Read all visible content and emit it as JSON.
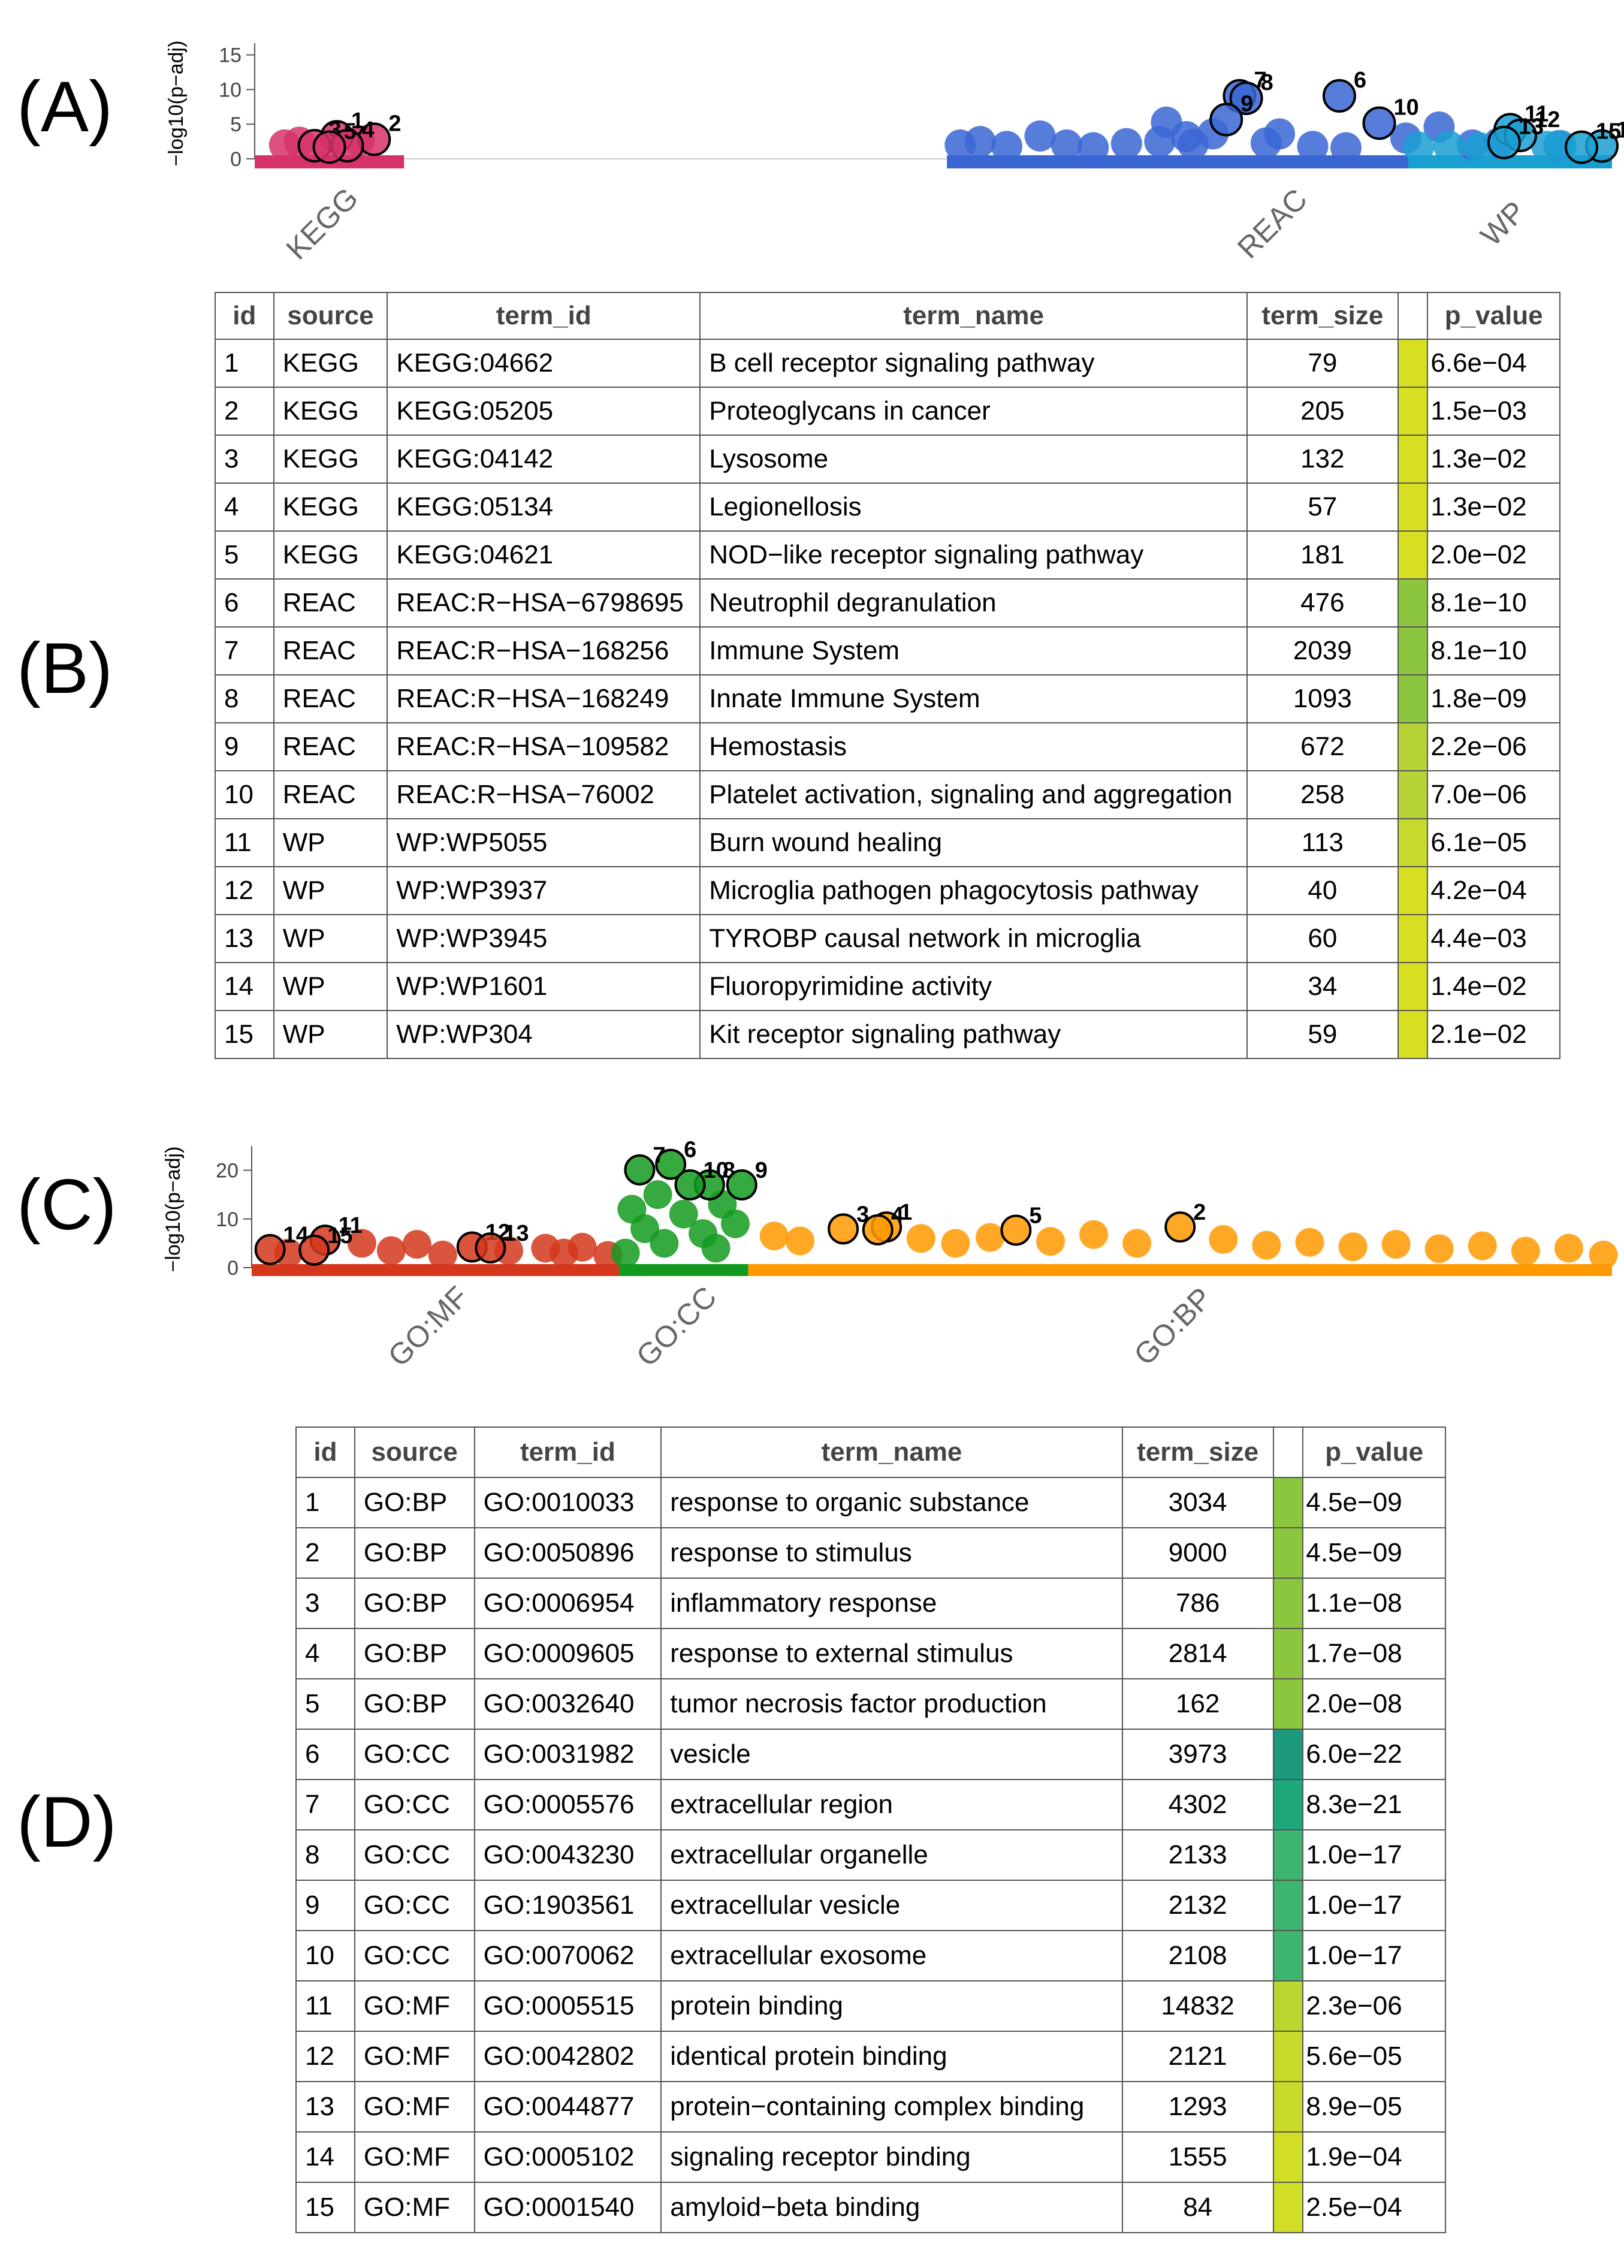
{
  "panels": {
    "a": "(A)",
    "b": "(B)",
    "c": "(C)",
    "d": "(D)"
  },
  "table_headers": [
    "id",
    "source",
    "term_id",
    "term_name",
    "term_size",
    "",
    "p_value"
  ],
  "chart_data": [
    {
      "type": "scatter",
      "ylabel": "−log10(p−adj)",
      "ylim": [
        0,
        16
      ],
      "yticks": [
        0,
        5,
        10,
        15
      ],
      "grid": false,
      "legend": "none",
      "sources": [
        {
          "name": "KEGG",
          "color": "#d6336c",
          "width": 0.11
        },
        {
          "name": "REAC",
          "color": "#3a66d4",
          "width": 0.49
        },
        {
          "name": "WP",
          "color": "#1a9fd1",
          "width": 0.15
        }
      ],
      "highlighted": [
        {
          "id": 1,
          "source": "KEGG",
          "pos": 0.55,
          "y": 3.18
        },
        {
          "id": 2,
          "source": "KEGG",
          "pos": 0.8,
          "y": 2.82
        },
        {
          "id": 3,
          "source": "KEGG",
          "pos": 0.4,
          "y": 1.89
        },
        {
          "id": 4,
          "source": "KEGG",
          "pos": 0.62,
          "y": 1.89
        },
        {
          "id": 5,
          "source": "KEGG",
          "pos": 0.5,
          "y": 1.7
        },
        {
          "id": 6,
          "source": "REAC",
          "pos": 0.59,
          "y": 9.09
        },
        {
          "id": 7,
          "source": "REAC",
          "pos": 0.44,
          "y": 9.09
        },
        {
          "id": 8,
          "source": "REAC",
          "pos": 0.45,
          "y": 8.74
        },
        {
          "id": 9,
          "source": "REAC",
          "pos": 0.42,
          "y": 5.66
        },
        {
          "id": 10,
          "source": "REAC",
          "pos": 0.65,
          "y": 5.15
        },
        {
          "id": 11,
          "source": "WP",
          "pos": 0.5,
          "y": 4.21
        },
        {
          "id": 12,
          "source": "WP",
          "pos": 0.55,
          "y": 3.38
        },
        {
          "id": 13,
          "source": "WP",
          "pos": 0.47,
          "y": 2.36
        },
        {
          "id": 14,
          "source": "WP",
          "pos": 0.95,
          "y": 1.85
        },
        {
          "id": 15,
          "source": "WP",
          "pos": 0.85,
          "y": 1.68
        }
      ],
      "background": [
        {
          "source": "KEGG",
          "pos": 0.2,
          "y": 2.0
        },
        {
          "source": "KEGG",
          "pos": 0.3,
          "y": 2.4
        },
        {
          "source": "KEGG",
          "pos": 0.7,
          "y": 2.6
        },
        {
          "source": "REAC",
          "pos": 0.02,
          "y": 2.0
        },
        {
          "source": "REAC",
          "pos": 0.05,
          "y": 2.5
        },
        {
          "source": "REAC",
          "pos": 0.09,
          "y": 1.8
        },
        {
          "source": "REAC",
          "pos": 0.14,
          "y": 3.3
        },
        {
          "source": "REAC",
          "pos": 0.18,
          "y": 2.0
        },
        {
          "source": "REAC",
          "pos": 0.22,
          "y": 1.6
        },
        {
          "source": "REAC",
          "pos": 0.27,
          "y": 2.2
        },
        {
          "source": "REAC",
          "pos": 0.32,
          "y": 2.5
        },
        {
          "source": "REAC",
          "pos": 0.33,
          "y": 5.3
        },
        {
          "source": "REAC",
          "pos": 0.36,
          "y": 3.2
        },
        {
          "source": "REAC",
          "pos": 0.37,
          "y": 2.1
        },
        {
          "source": "REAC",
          "pos": 0.4,
          "y": 3.6
        },
        {
          "source": "REAC",
          "pos": 0.48,
          "y": 2.3
        },
        {
          "source": "REAC",
          "pos": 0.5,
          "y": 3.6
        },
        {
          "source": "REAC",
          "pos": 0.55,
          "y": 1.8
        },
        {
          "source": "REAC",
          "pos": 0.6,
          "y": 1.6
        },
        {
          "source": "REAC",
          "pos": 0.69,
          "y": 3.0
        },
        {
          "source": "REAC",
          "pos": 0.74,
          "y": 4.6
        },
        {
          "source": "REAC",
          "pos": 0.79,
          "y": 2.0
        },
        {
          "source": "REAC",
          "pos": 0.83,
          "y": 2.3
        },
        {
          "source": "REAC",
          "pos": 0.92,
          "y": 1.9
        },
        {
          "source": "WP",
          "pos": 0.05,
          "y": 1.7
        },
        {
          "source": "WP",
          "pos": 0.2,
          "y": 1.8
        },
        {
          "source": "WP",
          "pos": 0.35,
          "y": 1.6
        },
        {
          "source": "WP",
          "pos": 0.68,
          "y": 1.8
        },
        {
          "source": "WP",
          "pos": 0.75,
          "y": 1.9
        }
      ]
    },
    {
      "type": "scatter",
      "ylabel": "−log10(p−adj)",
      "ylim": [
        0,
        24
      ],
      "yticks": [
        0,
        10,
        20
      ],
      "grid": false,
      "legend": "none",
      "sources": [
        {
          "name": "GO:MF",
          "color": "#d4371c",
          "width": 0.27
        },
        {
          "name": "GO:CC",
          "color": "#139a1e",
          "width": 0.095
        },
        {
          "name": "GO:BP",
          "color": "#ff9900",
          "width": 0.635
        }
      ],
      "highlighted": [
        {
          "id": 1,
          "source": "GO:BP",
          "pos": 0.16,
          "y": 8.35
        },
        {
          "id": 2,
          "source": "GO:BP",
          "pos": 0.5,
          "y": 8.35
        },
        {
          "id": 3,
          "source": "GO:BP",
          "pos": 0.11,
          "y": 7.96
        },
        {
          "id": 4,
          "source": "GO:BP",
          "pos": 0.15,
          "y": 7.77
        },
        {
          "id": 5,
          "source": "GO:BP",
          "pos": 0.31,
          "y": 7.7
        },
        {
          "id": 6,
          "source": "GO:CC",
          "pos": 0.4,
          "y": 21.22
        },
        {
          "id": 7,
          "source": "GO:CC",
          "pos": 0.16,
          "y": 20.08
        },
        {
          "id": 8,
          "source": "GO:CC",
          "pos": 0.7,
          "y": 17.0
        },
        {
          "id": 9,
          "source": "GO:CC",
          "pos": 0.95,
          "y": 17.0
        },
        {
          "id": 10,
          "source": "GO:CC",
          "pos": 0.55,
          "y": 17.0
        },
        {
          "id": 11,
          "source": "GO:MF",
          "pos": 0.2,
          "y": 5.64
        },
        {
          "id": 12,
          "source": "GO:MF",
          "pos": 0.6,
          "y": 4.25
        },
        {
          "id": 13,
          "source": "GO:MF",
          "pos": 0.65,
          "y": 4.05
        },
        {
          "id": 14,
          "source": "GO:MF",
          "pos": 0.05,
          "y": 3.72
        },
        {
          "id": 15,
          "source": "GO:MF",
          "pos": 0.17,
          "y": 3.6
        }
      ],
      "background": [
        {
          "source": "GO:MF",
          "pos": 0.1,
          "y": 3.0
        },
        {
          "source": "GO:MF",
          "pos": 0.3,
          "y": 5.0
        },
        {
          "source": "GO:MF",
          "pos": 0.38,
          "y": 3.5
        },
        {
          "source": "GO:MF",
          "pos": 0.45,
          "y": 4.8
        },
        {
          "source": "GO:MF",
          "pos": 0.52,
          "y": 2.6
        },
        {
          "source": "GO:MF",
          "pos": 0.7,
          "y": 3.5
        },
        {
          "source": "GO:MF",
          "pos": 0.8,
          "y": 4.0
        },
        {
          "source": "GO:MF",
          "pos": 0.85,
          "y": 3.0
        },
        {
          "source": "GO:MF",
          "pos": 0.9,
          "y": 4.2
        },
        {
          "source": "GO:MF",
          "pos": 0.97,
          "y": 2.5
        },
        {
          "source": "GO:CC",
          "pos": 0.1,
          "y": 12.0
        },
        {
          "source": "GO:CC",
          "pos": 0.3,
          "y": 15.0
        },
        {
          "source": "GO:CC",
          "pos": 0.5,
          "y": 11.0
        },
        {
          "source": "GO:CC",
          "pos": 0.8,
          "y": 13.0
        },
        {
          "source": "GO:CC",
          "pos": 0.2,
          "y": 8.0
        },
        {
          "source": "GO:CC",
          "pos": 0.65,
          "y": 7.0
        },
        {
          "source": "GO:CC",
          "pos": 0.9,
          "y": 9.0
        },
        {
          "source": "GO:CC",
          "pos": 0.35,
          "y": 5.0
        },
        {
          "source": "GO:CC",
          "pos": 0.75,
          "y": 4.0
        },
        {
          "source": "GO:CC",
          "pos": 0.05,
          "y": 3.0
        },
        {
          "source": "GO:BP",
          "pos": 0.03,
          "y": 6.5
        },
        {
          "source": "GO:BP",
          "pos": 0.06,
          "y": 5.5
        },
        {
          "source": "GO:BP",
          "pos": 0.2,
          "y": 6.0
        },
        {
          "source": "GO:BP",
          "pos": 0.24,
          "y": 5.0
        },
        {
          "source": "GO:BP",
          "pos": 0.28,
          "y": 6.2
        },
        {
          "source": "GO:BP",
          "pos": 0.35,
          "y": 5.4
        },
        {
          "source": "GO:BP",
          "pos": 0.4,
          "y": 6.8
        },
        {
          "source": "GO:BP",
          "pos": 0.45,
          "y": 5.0
        },
        {
          "source": "GO:BP",
          "pos": 0.55,
          "y": 5.8
        },
        {
          "source": "GO:BP",
          "pos": 0.6,
          "y": 4.6
        },
        {
          "source": "GO:BP",
          "pos": 0.65,
          "y": 5.2
        },
        {
          "source": "GO:BP",
          "pos": 0.7,
          "y": 4.3
        },
        {
          "source": "GO:BP",
          "pos": 0.75,
          "y": 4.8
        },
        {
          "source": "GO:BP",
          "pos": 0.8,
          "y": 3.9
        },
        {
          "source": "GO:BP",
          "pos": 0.85,
          "y": 4.5
        },
        {
          "source": "GO:BP",
          "pos": 0.9,
          "y": 3.4
        },
        {
          "source": "GO:BP",
          "pos": 0.95,
          "y": 4.0
        },
        {
          "source": "GO:BP",
          "pos": 0.99,
          "y": 2.6
        }
      ]
    }
  ],
  "table_b": {
    "rows": [
      {
        "id": "1",
        "source": "KEGG",
        "term_id": "KEGG:04662",
        "term_name": "B cell receptor signaling pathway",
        "term_size": "79",
        "color": "#d7df23",
        "p_value": "6.6e−04"
      },
      {
        "id": "2",
        "source": "KEGG",
        "term_id": "KEGG:05205",
        "term_name": "Proteoglycans in cancer",
        "term_size": "205",
        "color": "#d7df23",
        "p_value": "1.5e−03"
      },
      {
        "id": "3",
        "source": "KEGG",
        "term_id": "KEGG:04142",
        "term_name": "Lysosome",
        "term_size": "132",
        "color": "#d7df23",
        "p_value": "1.3e−02"
      },
      {
        "id": "4",
        "source": "KEGG",
        "term_id": "KEGG:05134",
        "term_name": "Legionellosis",
        "term_size": "57",
        "color": "#d7df23",
        "p_value": "1.3e−02"
      },
      {
        "id": "5",
        "source": "KEGG",
        "term_id": "KEGG:04621",
        "term_name": "NOD−like receptor signaling pathway",
        "term_size": "181",
        "color": "#d7df23",
        "p_value": "2.0e−02"
      },
      {
        "id": "6",
        "source": "REAC",
        "term_id": "REAC:R−HSA−6798695",
        "term_name": "Neutrophil degranulation",
        "term_size": "476",
        "color": "#8cc63f",
        "p_value": "8.1e−10"
      },
      {
        "id": "7",
        "source": "REAC",
        "term_id": "REAC:R−HSA−168256",
        "term_name": "Immune System",
        "term_size": "2039",
        "color": "#8cc63f",
        "p_value": "8.1e−10"
      },
      {
        "id": "8",
        "source": "REAC",
        "term_id": "REAC:R−HSA−168249",
        "term_name": "Innate Immune System",
        "term_size": "1093",
        "color": "#8cc63f",
        "p_value": "1.8e−09"
      },
      {
        "id": "9",
        "source": "REAC",
        "term_id": "REAC:R−HSA−109582",
        "term_name": "Hemostasis",
        "term_size": "672",
        "color": "#b5d334",
        "p_value": "2.2e−06"
      },
      {
        "id": "10",
        "source": "REAC",
        "term_id": "REAC:R−HSA−76002",
        "term_name": "Platelet activation, signaling and aggregation",
        "term_size": "258",
        "color": "#b5d334",
        "p_value": "7.0e−06"
      },
      {
        "id": "11",
        "source": "WP",
        "term_id": "WP:WP5055",
        "term_name": "Burn wound healing",
        "term_size": "113",
        "color": "#c6da2c",
        "p_value": "6.1e−05"
      },
      {
        "id": "12",
        "source": "WP",
        "term_id": "WP:WP3937",
        "term_name": "Microglia pathogen phagocytosis pathway",
        "term_size": "40",
        "color": "#d7df23",
        "p_value": "4.2e−04"
      },
      {
        "id": "13",
        "source": "WP",
        "term_id": "WP:WP3945",
        "term_name": "TYROBP causal network in microglia",
        "term_size": "60",
        "color": "#d7df23",
        "p_value": "4.4e−03"
      },
      {
        "id": "14",
        "source": "WP",
        "term_id": "WP:WP1601",
        "term_name": "Fluoropyrimidine activity",
        "term_size": "34",
        "color": "#d7df23",
        "p_value": "1.4e−02"
      },
      {
        "id": "15",
        "source": "WP",
        "term_id": "WP:WP304",
        "term_name": "Kit receptor signaling pathway",
        "term_size": "59",
        "color": "#d7df23",
        "p_value": "2.1e−02"
      }
    ]
  },
  "table_d": {
    "rows": [
      {
        "id": "1",
        "source": "GO:BP",
        "term_id": "GO:0010033",
        "term_name": "response to organic substance",
        "term_size": "3034",
        "color": "#8cc63f",
        "p_value": "4.5e−09"
      },
      {
        "id": "2",
        "source": "GO:BP",
        "term_id": "GO:0050896",
        "term_name": "response to stimulus",
        "term_size": "9000",
        "color": "#8cc63f",
        "p_value": "4.5e−09"
      },
      {
        "id": "3",
        "source": "GO:BP",
        "term_id": "GO:0006954",
        "term_name": "inflammatory response",
        "term_size": "786",
        "color": "#8cc63f",
        "p_value": "1.1e−08"
      },
      {
        "id": "4",
        "source": "GO:BP",
        "term_id": "GO:0009605",
        "term_name": "response to external stimulus",
        "term_size": "2814",
        "color": "#8cc63f",
        "p_value": "1.7e−08"
      },
      {
        "id": "5",
        "source": "GO:BP",
        "term_id": "GO:0032640",
        "term_name": "tumor necrosis factor production",
        "term_size": "162",
        "color": "#8cc63f",
        "p_value": "2.0e−08"
      },
      {
        "id": "6",
        "source": "GO:CC",
        "term_id": "GO:0031982",
        "term_name": "vesicle",
        "term_size": "3973",
        "color": "#1d9a7e",
        "p_value": "6.0e−22"
      },
      {
        "id": "7",
        "source": "GO:CC",
        "term_id": "GO:0005576",
        "term_name": "extracellular region",
        "term_size": "4302",
        "color": "#1fa67a",
        "p_value": "8.3e−21"
      },
      {
        "id": "8",
        "source": "GO:CC",
        "term_id": "GO:0043230",
        "term_name": "extracellular organelle",
        "term_size": "2133",
        "color": "#3db56e",
        "p_value": "1.0e−17"
      },
      {
        "id": "9",
        "source": "GO:CC",
        "term_id": "GO:1903561",
        "term_name": "extracellular vesicle",
        "term_size": "2132",
        "color": "#3db56e",
        "p_value": "1.0e−17"
      },
      {
        "id": "10",
        "source": "GO:CC",
        "term_id": "GO:0070062",
        "term_name": "extracellular exosome",
        "term_size": "2108",
        "color": "#3db56e",
        "p_value": "1.0e−17"
      },
      {
        "id": "11",
        "source": "GO:MF",
        "term_id": "GO:0005515",
        "term_name": "protein binding",
        "term_size": "14832",
        "color": "#bcd630",
        "p_value": "2.3e−06"
      },
      {
        "id": "12",
        "source": "GO:MF",
        "term_id": "GO:0042802",
        "term_name": "identical protein binding",
        "term_size": "2121",
        "color": "#c9db2a",
        "p_value": "5.6e−05"
      },
      {
        "id": "13",
        "source": "GO:MF",
        "term_id": "GO:0044877",
        "term_name": "protein−containing complex binding",
        "term_size": "1293",
        "color": "#c9db2a",
        "p_value": "8.9e−05"
      },
      {
        "id": "14",
        "source": "GO:MF",
        "term_id": "GO:0005102",
        "term_name": "signaling receptor binding",
        "term_size": "1555",
        "color": "#d2dd25",
        "p_value": "1.9e−04"
      },
      {
        "id": "15",
        "source": "GO:MF",
        "term_id": "GO:0001540",
        "term_name": "amyloid−beta binding",
        "term_size": "84",
        "color": "#d2dd25",
        "p_value": "2.5e−04"
      }
    ]
  }
}
